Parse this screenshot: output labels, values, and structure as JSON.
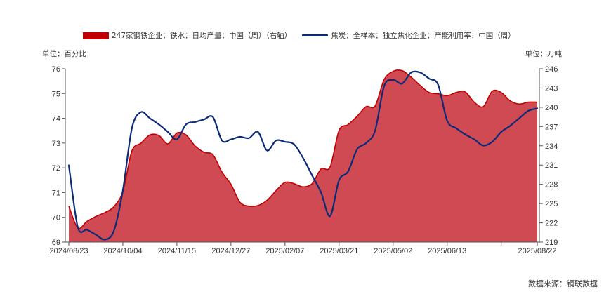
{
  "source": "数据来源：钢联数据",
  "chart_data": {
    "type": "area",
    "x": [
      "2024/08/23",
      "2024/08/30",
      "2024/09/06",
      "2024/09/13",
      "2024/09/20",
      "2024/09/27",
      "2024/10/04",
      "2024/10/11",
      "2024/10/18",
      "2024/10/25",
      "2024/11/01",
      "2024/11/08",
      "2024/11/15",
      "2024/11/22",
      "2024/11/29",
      "2024/12/06",
      "2024/12/13",
      "2024/12/20",
      "2024/12/27",
      "2025/01/03",
      "2025/01/10",
      "2025/01/17",
      "2025/01/24",
      "2025/01/31",
      "2025/02/07",
      "2025/02/14",
      "2025/02/21",
      "2025/02/28",
      "2025/03/07",
      "2025/03/14",
      "2025/03/21",
      "2025/03/28",
      "2025/04/04",
      "2025/04/11",
      "2025/04/18",
      "2025/04/25",
      "2025/05/02",
      "2025/05/09",
      "2025/05/16",
      "2025/05/23",
      "2025/05/30",
      "2025/06/06",
      "2025/06/13",
      "2025/06/20",
      "2025/06/27",
      "2025/07/04",
      "2025/07/11",
      "2025/07/18",
      "2025/07/25",
      "2025/08/01",
      "2025/08/08",
      "2025/08/15",
      "2025/08/22"
    ],
    "x_tick_labels": [
      "2024/08/23",
      "2024/10/04",
      "2024/11/15",
      "2024/12/27",
      "2025/02/07",
      "2025/03/21",
      "2025/05/02",
      "2025/06/13",
      "2025/08/22"
    ],
    "y_left": {
      "label": "单位：百分比",
      "range": [
        69,
        76
      ],
      "ticks": [
        76,
        75,
        74,
        73,
        72,
        71,
        70,
        69
      ]
    },
    "y_right": {
      "label": "单位：万吨",
      "range": [
        219,
        246
      ],
      "ticks": [
        246,
        243,
        240,
        237,
        234,
        231,
        228,
        225,
        222,
        219
      ]
    },
    "grid": false,
    "legend_position": "top",
    "series": [
      {
        "name": "247家钢铁企业：铁水：日均产量：中国（周）（右轴）",
        "type": "area",
        "axis": "right",
        "color": "#c00000",
        "fill": "#cf4a52",
        "values": [
          224.6,
          221.2,
          222.2,
          223.0,
          223.6,
          224.5,
          226.9,
          233.2,
          234.4,
          235.7,
          235.6,
          234.3,
          236.0,
          235.7,
          234.0,
          233.0,
          232.6,
          229.9,
          228.0,
          225.2,
          224.6,
          224.7,
          225.5,
          227.0,
          228.3,
          228.1,
          227.6,
          228.1,
          230.4,
          230.7,
          236.4,
          237.3,
          238.6,
          240.1,
          240.2,
          244.3,
          245.6,
          245.7,
          244.7,
          243.4,
          242.3,
          242.1,
          241.8,
          242.3,
          242.4,
          240.8,
          240.1,
          242.5,
          242.3,
          241.0,
          240.5,
          240.8,
          240.8
        ]
      },
      {
        "name": "焦炭：全样本：独立焦化企业：产能利用率：中国（周）",
        "type": "line",
        "axis": "left",
        "color": "#0b2a78",
        "values": [
          72.1,
          69.6,
          69.5,
          69.3,
          69.1,
          69.45,
          71.1,
          73.6,
          74.25,
          74.0,
          73.75,
          73.45,
          73.15,
          73.75,
          73.85,
          73.95,
          74.05,
          73.1,
          73.15,
          73.25,
          73.2,
          73.45,
          72.7,
          73.1,
          73.05,
          72.95,
          72.4,
          71.7,
          71.0,
          70.05,
          71.5,
          71.85,
          72.75,
          73.0,
          73.5,
          75.3,
          75.55,
          75.4,
          75.85,
          75.85,
          75.6,
          75.35,
          73.9,
          73.6,
          73.35,
          73.15,
          72.9,
          73.05,
          73.45,
          73.7,
          74.0,
          74.3,
          74.4
        ]
      }
    ]
  }
}
